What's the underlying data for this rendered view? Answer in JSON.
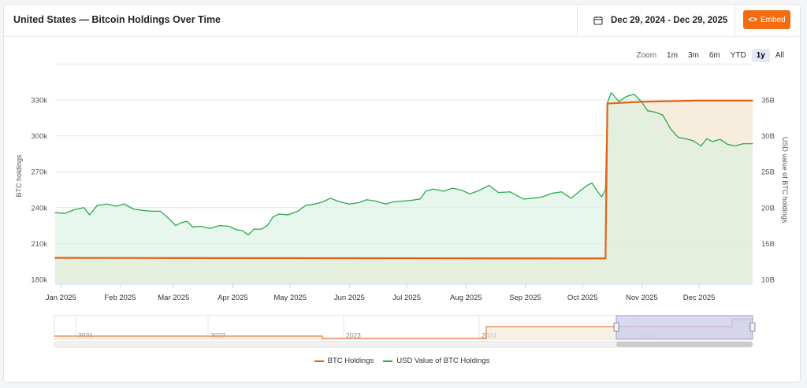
{
  "header": {
    "title": "United States — Bitcoin Holdings Over Time",
    "date_range": "Dec 29, 2024 - Dec 29, 2025",
    "embed_label": "Embed",
    "calendar_icon": "calendar-icon",
    "code_icon": "code-icon"
  },
  "zoom": {
    "label": "Zoom",
    "options": [
      "1m",
      "3m",
      "6m",
      "YTD",
      "1y",
      "All"
    ],
    "selected": "1y"
  },
  "colors": {
    "btc": "#e5621a",
    "usd": "#2ea84a",
    "accent": "#f36d10",
    "navigator_selection": "#c9cbee"
  },
  "chart_data": {
    "type": "line",
    "ylabel": "BTC holdings",
    "ylabel_right": "USD value of BTC holdings",
    "x_range": [
      "2024-12-29",
      "2025-12-29"
    ],
    "x_ticks": [
      "Jan 2025",
      "Feb 2025",
      "Mar 2025",
      "Apr 2025",
      "May 2025",
      "Jun 2025",
      "Jul 2025",
      "Aug 2025",
      "Sep 2025",
      "Oct 2025",
      "Nov 2025",
      "Dec 2025"
    ],
    "y_left": {
      "ylim": [
        180000,
        330000
      ],
      "ticks": [
        180000,
        210000,
        240000,
        270000,
        300000,
        330000
      ],
      "tick_labels": [
        "180k",
        "210k",
        "240k",
        "270k",
        "300k",
        "330k"
      ]
    },
    "y_right": {
      "ylim": [
        10,
        35
      ],
      "ticks": [
        10,
        15,
        20,
        25,
        30,
        35
      ],
      "tick_labels": [
        "10B",
        "15B",
        "20B",
        "25B",
        "30B",
        "35B"
      ]
    },
    "grid": true,
    "legend_position": "bottom",
    "series": [
      {
        "name": "BTC Holdings",
        "axis": "left",
        "points": [
          [
            "2024-12-29",
            198000
          ],
          [
            "2025-10-13",
            197500
          ],
          [
            "2025-10-14",
            327000
          ],
          [
            "2025-11-01",
            328500
          ],
          [
            "2025-12-01",
            329500
          ],
          [
            "2025-12-29",
            329500
          ]
        ]
      },
      {
        "name": "USD Value of BTC Holdings",
        "axis": "right",
        "points": [
          [
            "2024-12-29",
            19.3
          ],
          [
            "2025-01-03",
            19.2
          ],
          [
            "2025-01-08",
            19.7
          ],
          [
            "2025-01-13",
            20.0
          ],
          [
            "2025-01-16",
            19.0
          ],
          [
            "2025-01-20",
            20.3
          ],
          [
            "2025-01-25",
            20.5
          ],
          [
            "2025-01-30",
            20.2
          ],
          [
            "2025-02-03",
            20.5
          ],
          [
            "2025-02-08",
            19.8
          ],
          [
            "2025-02-13",
            19.6
          ],
          [
            "2025-02-18",
            19.5
          ],
          [
            "2025-02-22",
            19.5
          ],
          [
            "2025-02-26",
            18.6
          ],
          [
            "2025-03-02",
            17.5
          ],
          [
            "2025-03-05",
            17.9
          ],
          [
            "2025-03-08",
            18.1
          ],
          [
            "2025-03-11",
            17.3
          ],
          [
            "2025-03-15",
            17.4
          ],
          [
            "2025-03-20",
            17.1
          ],
          [
            "2025-03-25",
            17.5
          ],
          [
            "2025-03-30",
            17.4
          ],
          [
            "2025-04-03",
            16.9
          ],
          [
            "2025-04-06",
            16.8
          ],
          [
            "2025-04-09",
            16.2
          ],
          [
            "2025-04-12",
            17.0
          ],
          [
            "2025-04-16",
            17.0
          ],
          [
            "2025-04-19",
            17.5
          ],
          [
            "2025-04-22",
            18.7
          ],
          [
            "2025-04-25",
            19.1
          ],
          [
            "2025-04-30",
            19.0
          ],
          [
            "2025-05-05",
            19.5
          ],
          [
            "2025-05-09",
            20.3
          ],
          [
            "2025-05-14",
            20.5
          ],
          [
            "2025-05-18",
            20.8
          ],
          [
            "2025-05-22",
            21.3
          ],
          [
            "2025-05-27",
            20.8
          ],
          [
            "2025-06-01",
            20.5
          ],
          [
            "2025-06-06",
            20.7
          ],
          [
            "2025-06-10",
            21.1
          ],
          [
            "2025-06-15",
            20.9
          ],
          [
            "2025-06-20",
            20.5
          ],
          [
            "2025-06-24",
            20.8
          ],
          [
            "2025-06-28",
            20.9
          ],
          [
            "2025-07-03",
            21.0
          ],
          [
            "2025-07-08",
            21.2
          ],
          [
            "2025-07-11",
            22.3
          ],
          [
            "2025-07-15",
            22.6
          ],
          [
            "2025-07-20",
            22.3
          ],
          [
            "2025-07-25",
            22.7
          ],
          [
            "2025-07-30",
            22.4
          ],
          [
            "2025-08-03",
            21.9
          ],
          [
            "2025-08-08",
            22.4
          ],
          [
            "2025-08-13",
            23.1
          ],
          [
            "2025-08-18",
            22.1
          ],
          [
            "2025-08-24",
            22.2
          ],
          [
            "2025-08-31",
            21.2
          ],
          [
            "2025-09-05",
            21.3
          ],
          [
            "2025-09-10",
            21.5
          ],
          [
            "2025-09-15",
            22.0
          ],
          [
            "2025-09-20",
            22.2
          ],
          [
            "2025-09-25",
            21.3
          ],
          [
            "2025-09-30",
            22.4
          ],
          [
            "2025-10-04",
            23.2
          ],
          [
            "2025-10-06",
            23.4
          ],
          [
            "2025-10-09",
            22.2
          ],
          [
            "2025-10-11",
            21.5
          ],
          [
            "2025-10-13",
            22.5
          ],
          [
            "2025-10-14",
            34.6
          ],
          [
            "2025-10-16",
            36.0
          ],
          [
            "2025-10-20",
            34.8
          ],
          [
            "2025-10-24",
            35.5
          ],
          [
            "2025-10-28",
            35.8
          ],
          [
            "2025-11-01",
            34.7
          ],
          [
            "2025-11-04",
            33.5
          ],
          [
            "2025-11-08",
            33.3
          ],
          [
            "2025-11-12",
            32.9
          ],
          [
            "2025-11-16",
            31.0
          ],
          [
            "2025-11-20",
            29.8
          ],
          [
            "2025-11-24",
            29.6
          ],
          [
            "2025-11-28",
            29.3
          ],
          [
            "2025-12-02",
            28.6
          ],
          [
            "2025-12-05",
            29.6
          ],
          [
            "2025-12-08",
            29.2
          ],
          [
            "2025-12-12",
            29.5
          ],
          [
            "2025-12-16",
            28.8
          ],
          [
            "2025-12-20",
            28.6
          ],
          [
            "2025-12-24",
            28.9
          ],
          [
            "2025-12-29",
            28.9
          ]
        ]
      }
    ],
    "navigator": {
      "labels": [
        "2021",
        "2022",
        "2023",
        "2024",
        "2025"
      ],
      "selection": [
        "2024-12-29",
        "2025-12-29"
      ]
    }
  },
  "legend": {
    "items": [
      {
        "label": "BTC Holdings"
      },
      {
        "label": "USD Value of BTC Holdings"
      }
    ]
  }
}
